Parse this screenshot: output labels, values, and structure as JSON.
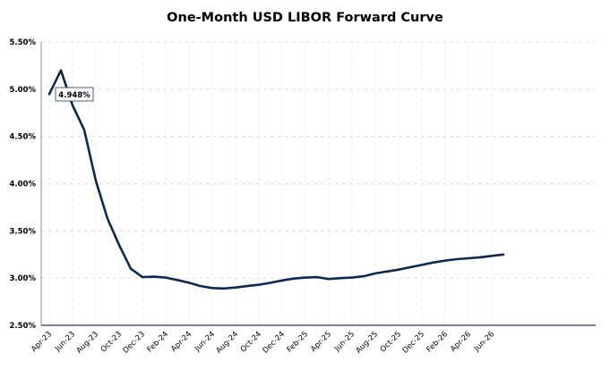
{
  "chart_data": {
    "type": "line",
    "title": "One-Month USD LIBOR Forward Curve",
    "xlabel": "",
    "ylabel": "",
    "ylim": [
      2.5,
      5.5
    ],
    "yticks": [
      "2.50%",
      "3.00%",
      "3.50%",
      "4.00%",
      "4.50%",
      "5.00%",
      "5.50%"
    ],
    "xticks": [
      "Apr-23",
      "Jun-23",
      "Aug-23",
      "Oct-23",
      "Dec-23",
      "Feb-24",
      "Apr-24",
      "Jun-24",
      "Aug-24",
      "Oct-24",
      "Dec-24",
      "Feb-25",
      "Apr-25",
      "Jun-25",
      "Aug-25",
      "Oct-25",
      "Dec-25",
      "Feb-26",
      "Apr-26",
      "Jun-26"
    ],
    "grid": true,
    "line_color": "#0b2a4f",
    "callout": "4.948%",
    "series": [
      {
        "x": [
          "2023-04",
          "2023-05",
          "2023-06",
          "2023-07",
          "2023-08",
          "2023-09",
          "2023-10",
          "2023-11",
          "2023-12",
          "2024-01",
          "2024-02",
          "2024-03",
          "2024-04",
          "2024-05",
          "2024-06",
          "2024-07",
          "2024-08",
          "2024-09",
          "2024-10",
          "2024-11",
          "2024-12",
          "2025-01",
          "2025-02",
          "2025-03",
          "2025-04",
          "2025-05",
          "2025-06",
          "2025-07",
          "2025-08",
          "2025-09",
          "2025-10",
          "2025-11",
          "2025-12",
          "2026-01",
          "2026-02",
          "2026-03",
          "2026-04",
          "2026-05",
          "2026-06",
          "2026-07"
        ],
        "values": [
          4.948,
          5.2,
          4.83,
          4.57,
          4.03,
          3.63,
          3.35,
          3.1,
          3.01,
          3.015,
          3.005,
          2.98,
          2.95,
          2.915,
          2.895,
          2.89,
          2.9,
          2.915,
          2.93,
          2.95,
          2.975,
          2.995,
          3.005,
          3.01,
          2.99,
          3.0,
          3.005,
          3.02,
          3.05,
          3.07,
          3.09,
          3.115,
          3.14,
          3.165,
          3.185,
          3.2,
          3.21,
          3.22,
          3.235,
          3.25
        ]
      }
    ]
  }
}
